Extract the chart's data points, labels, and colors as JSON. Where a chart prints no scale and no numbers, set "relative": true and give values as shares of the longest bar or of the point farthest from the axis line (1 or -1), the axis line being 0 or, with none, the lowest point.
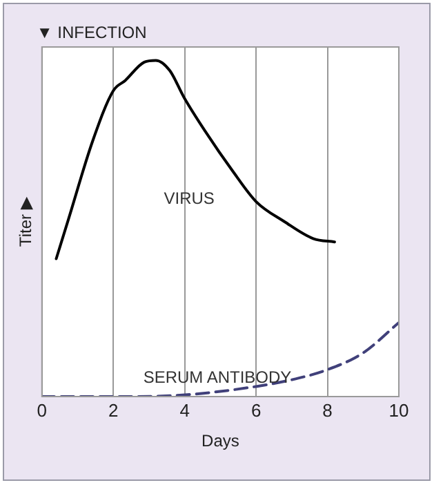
{
  "chart_data": {
    "type": "line",
    "relative": true,
    "xlabel": "Days",
    "ylabel": "Titer ▶",
    "annotations": [
      "▼ INFECTION"
    ],
    "xlim": [
      0,
      10
    ],
    "xticks": [
      0,
      2,
      4,
      6,
      8,
      10
    ],
    "grid": "x",
    "tick_labels": "x",
    "legend": false,
    "marker": "none",
    "series": [
      {
        "name": "VIRUS",
        "color": "#000000",
        "line_style": "solid",
        "x": [
          0.4,
          0.75,
          1.42,
          2.0,
          2.33,
          2.87,
          3.19,
          3.58,
          3.98,
          4.57,
          5.35,
          6.0,
          6.8,
          7.6,
          8.2
        ],
        "values": [
          0.41,
          0.53,
          0.76,
          0.91,
          0.94,
          0.995,
          1,
          0.97,
          0.89,
          0.79,
          0.67,
          0.58,
          0.52,
          0.47,
          0.46
        ]
      },
      {
        "name": "SERUM ANTIBODY",
        "color": "#40407a",
        "line_style": "dashed",
        "x": [
          0,
          2,
          4,
          6,
          7,
          8,
          9,
          10
        ],
        "values": [
          0,
          0,
          0.005,
          0.03,
          0.05,
          0.08,
          0.13,
          0.22
        ]
      }
    ]
  }
}
